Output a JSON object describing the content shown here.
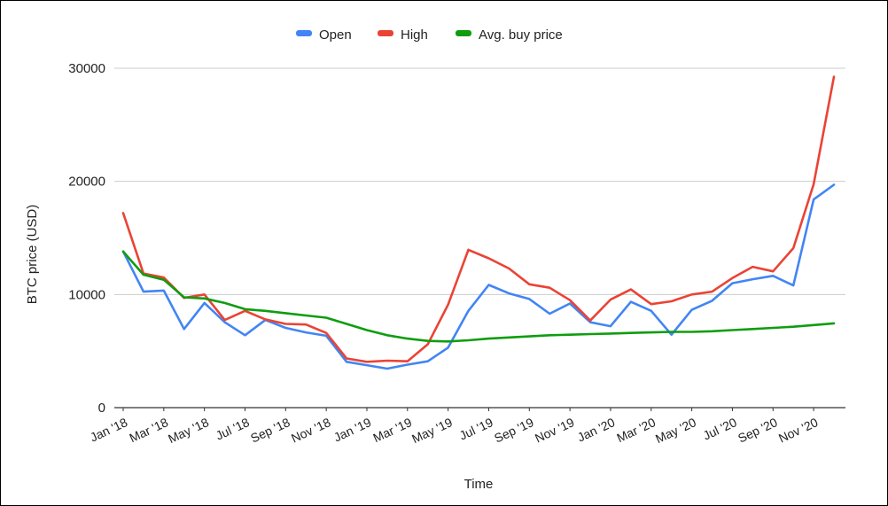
{
  "chart_data": {
    "type": "line",
    "title": "",
    "xlabel": "Time",
    "ylabel": "BTC price (USD)",
    "ylim": [
      0,
      30000
    ],
    "yticks": [
      0,
      10000,
      20000,
      30000
    ],
    "grid": true,
    "legend_position": "top-center",
    "x": [
      "Jan '18",
      "Feb '18",
      "Mar '18",
      "Apr '18",
      "May '18",
      "Jun '18",
      "Jul '18",
      "Aug '18",
      "Sep '18",
      "Oct '18",
      "Nov '18",
      "Dec '18",
      "Jan '19",
      "Feb '19",
      "Mar '19",
      "Apr '19",
      "May '19",
      "Jun '19",
      "Jul '19",
      "Aug '19",
      "Sep '19",
      "Oct '19",
      "Nov '19",
      "Dec '19",
      "Jan '20",
      "Feb '20",
      "Mar '20",
      "Apr '20",
      "May '20",
      "Jun '20",
      "Jul '20",
      "Aug '20",
      "Sep '20",
      "Oct '20",
      "Nov '20",
      "Dec '20"
    ],
    "x_tick_labels": [
      "Jan '18",
      "Mar '18",
      "May '18",
      "Jul '18",
      "Sep '18",
      "Nov '18",
      "Jan '19",
      "Mar '19",
      "May '19",
      "Jul '19",
      "Sep '19",
      "Nov '19",
      "Jan '20",
      "Mar '20",
      "May '20",
      "Jul '20",
      "Sep '20",
      "Nov '20"
    ],
    "series": [
      {
        "name": "Open",
        "color": "#4285F4",
        "values": [
          13800,
          10250,
          10350,
          6950,
          9250,
          7550,
          6400,
          7750,
          7050,
          6650,
          6350,
          4050,
          3750,
          3450,
          3800,
          4100,
          5300,
          8550,
          10850,
          10100,
          9600,
          8300,
          9200,
          7550,
          7200,
          9350,
          8550,
          6450,
          8650,
          9450,
          11000,
          11350,
          11650,
          10800,
          18400,
          19700
        ]
      },
      {
        "name": "High",
        "color": "#EA4335",
        "values": [
          17200,
          11850,
          11500,
          9700,
          10000,
          7750,
          8550,
          7800,
          7400,
          7350,
          6600,
          4350,
          4050,
          4150,
          4100,
          5600,
          9100,
          13950,
          13200,
          12300,
          10900,
          10600,
          9500,
          7700,
          9550,
          10450,
          9150,
          9400,
          10000,
          10250,
          11450,
          12450,
          12050,
          14100,
          19750,
          29250
        ]
      },
      {
        "name": "Avg. buy price",
        "color": "#0F9D0F",
        "values": [
          13800,
          11750,
          11300,
          9750,
          9650,
          9250,
          8700,
          8550,
          8350,
          8150,
          7950,
          7400,
          6850,
          6400,
          6100,
          5900,
          5850,
          5950,
          6100,
          6200,
          6300,
          6400,
          6450,
          6500,
          6550,
          6600,
          6650,
          6700,
          6700,
          6750,
          6850,
          6950,
          7050,
          7150,
          7300,
          7450
        ]
      }
    ]
  }
}
